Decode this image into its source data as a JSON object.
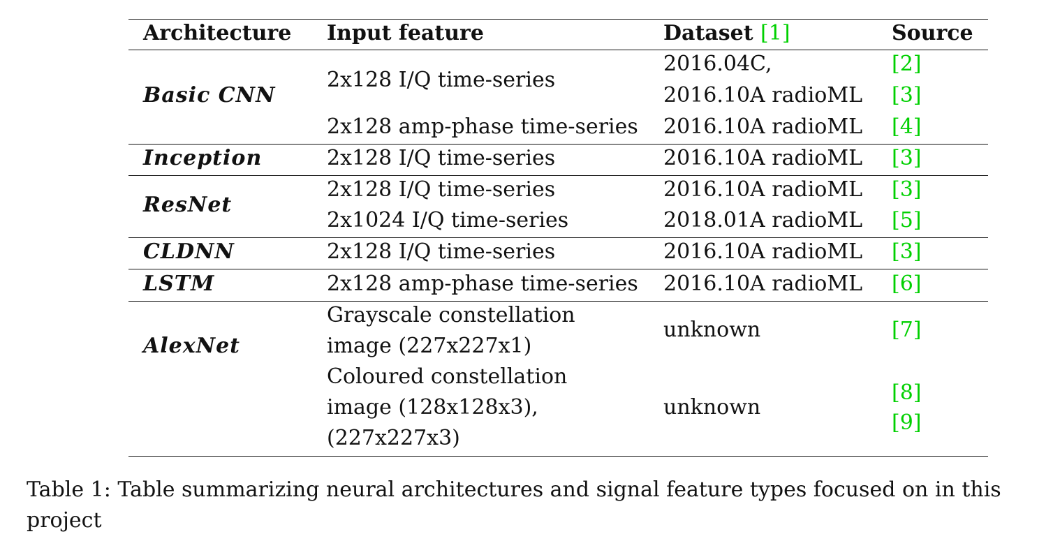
{
  "table": {
    "headers": {
      "architecture": "Architecture",
      "input_feature": "Input feature",
      "dataset": "Dataset",
      "dataset_ref": "[1]",
      "source": "Source"
    },
    "groups": [
      {
        "architecture": "Basic CNN",
        "rows": [
          {
            "input": "2x128 I/Q time-series",
            "dataset_line1": "2016.04C,",
            "dataset_line2": "2016.10A radioML",
            "source1": "[2]",
            "source2": "[3]"
          },
          {
            "input": "2x128 amp-phase time-series",
            "dataset": "2016.10A radioML",
            "source": "[4]"
          }
        ]
      },
      {
        "architecture": "Inception",
        "rows": [
          {
            "input": "2x128 I/Q time-series",
            "dataset": "2016.10A radioML",
            "source": "[3]"
          }
        ]
      },
      {
        "architecture": "ResNet",
        "rows": [
          {
            "input": "2x128 I/Q time-series",
            "dataset": "2016.10A radioML",
            "source": "[3]"
          },
          {
            "input": "2x1024 I/Q time-series",
            "dataset": "2018.01A radioML",
            "source": "[5]"
          }
        ]
      },
      {
        "architecture": "CLDNN",
        "rows": [
          {
            "input": "2x128 I/Q time-series",
            "dataset": "2016.10A radioML",
            "source": "[3]"
          }
        ]
      },
      {
        "architecture": "LSTM",
        "rows": [
          {
            "input": "2x128 amp-phase time-series",
            "dataset": "2016.10A radioML",
            "source": "[6]"
          }
        ]
      },
      {
        "architecture": "AlexNet",
        "rows": [
          {
            "input_line1": "Grayscale constellation",
            "input_line2": "image (227x227x1)",
            "dataset": "unknown",
            "source": "[7]"
          },
          {
            "input_line1": "Coloured constellation",
            "input_line2": "image (128x128x3),",
            "input_line3": "(227x227x3)",
            "dataset": "unknown",
            "source1": "[8]",
            "source2": "[9]"
          }
        ]
      }
    ]
  },
  "caption": "Table 1: Table summarizing neural architectures and signal feature types focused on in this project",
  "colors": {
    "reference_link": "#00d000",
    "text": "#111111",
    "background": "#ffffff"
  }
}
